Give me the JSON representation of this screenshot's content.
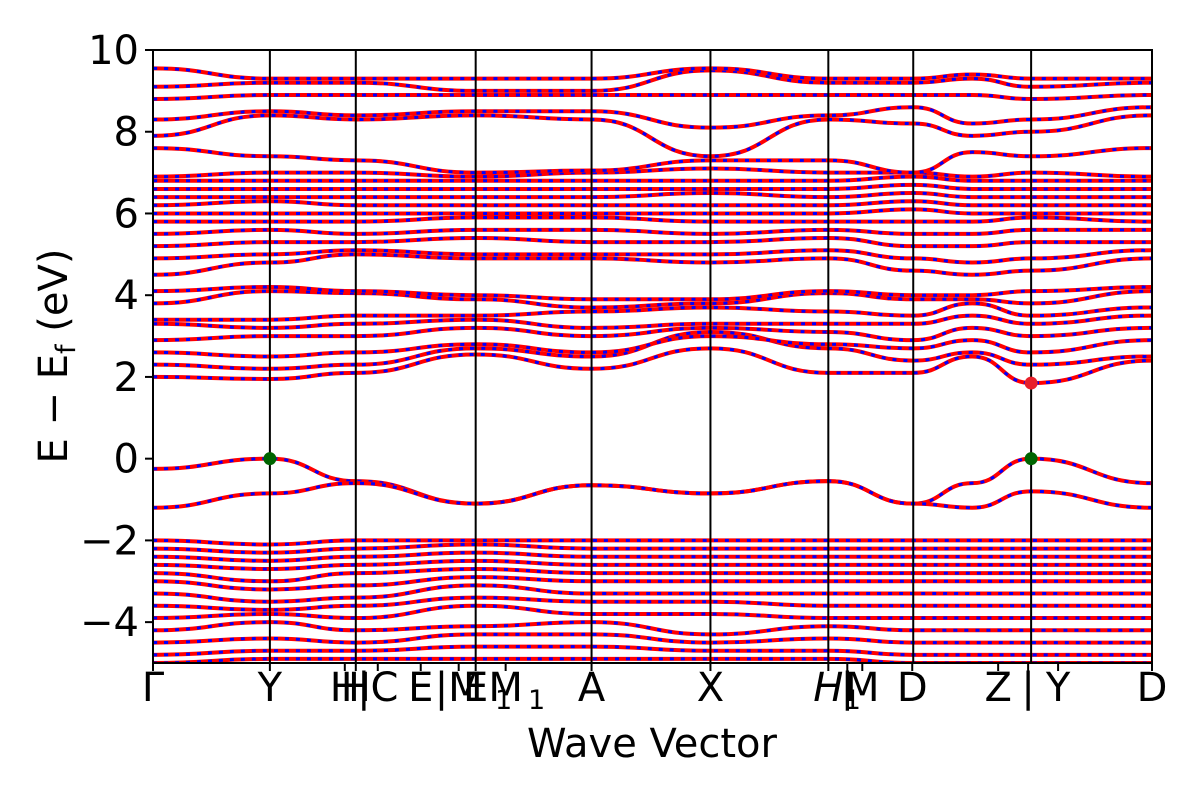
{
  "chart_data": {
    "type": "line",
    "title": "",
    "xlabel": "Wave Vector",
    "ylabel_main": "E − E",
    "ylabel_sub": "f",
    "ylabel_unit": " (eV)",
    "ylim": [
      -5,
      10
    ],
    "yticks": [
      -4,
      -2,
      0,
      2,
      4,
      6,
      8,
      10
    ],
    "ytick_labels": [
      "−4",
      "−2",
      "0",
      "2",
      "4",
      "6",
      "8",
      "10"
    ],
    "xlim": [
      0,
      1
    ],
    "kpoints": [
      {
        "x": 0.0,
        "label": "Γ"
      },
      {
        "x": 0.117,
        "label": "Y"
      },
      {
        "x": 0.192,
        "label": "H"
      },
      {
        "x": 0.203,
        "label": "H"
      },
      {
        "x": 0.225,
        "label": "|C"
      },
      {
        "x": 0.268,
        "label": "E"
      },
      {
        "x": 0.306,
        "label": "|M"
      },
      {
        "x": 0.323,
        "label": "E"
      },
      {
        "x": 0.353,
        "label": "M"
      },
      {
        "x": 0.323,
        "label": "1",
        "subscript": true,
        "dx": 0.028
      },
      {
        "x": 0.353,
        "label": "1",
        "subscript": true,
        "dx": 0.031
      },
      {
        "x": 0.439,
        "label": "A"
      },
      {
        "x": 0.558,
        "label": "X"
      },
      {
        "x": 0.676,
        "label": "H",
        "italic": true
      },
      {
        "x": 0.676,
        "label": "1",
        "subscript": true,
        "dx": 0.024
      },
      {
        "x": 0.695,
        "label": "|"
      },
      {
        "x": 0.71,
        "label": "M"
      },
      {
        "x": 0.76,
        "label": "D"
      },
      {
        "x": 0.846,
        "label": "Z"
      },
      {
        "x": 0.876,
        "label": "|"
      },
      {
        "x": 0.906,
        "label": "Y"
      },
      {
        "x": 1.0,
        "label": "D"
      }
    ],
    "vlines": [
      0.117,
      0.203,
      0.323,
      0.439,
      0.558,
      0.676,
      0.761,
      0.879
    ],
    "colors": {
      "band_red": "#ff0000",
      "band_blue": "#0000ff",
      "vbm_marker": "#006400",
      "cbm_marker": "#e8202a"
    },
    "markers": [
      {
        "x": 0.117,
        "y": 0.0,
        "color": "vbm"
      },
      {
        "x": 0.879,
        "y": 0.0,
        "color": "vbm"
      },
      {
        "x": 0.879,
        "y": 1.85,
        "color": "cbm"
      }
    ],
    "bands": [
      {
        "name": "",
        "y": [
          -0.25,
          0.0,
          -0.55,
          -1.1,
          -0.65,
          -0.85,
          -0.55,
          -1.1,
          -0.6,
          0.0,
          -0.6
        ]
      },
      {
        "name": "",
        "y": [
          -1.2,
          -0.85,
          -0.6,
          -1.1,
          -0.65,
          -0.85,
          -0.55,
          -1.1,
          -1.2,
          -0.8,
          -1.2
        ]
      },
      {
        "name": "",
        "y": [
          2.0,
          1.95,
          2.1,
          2.55,
          2.2,
          2.7,
          2.1,
          2.1,
          2.5,
          1.85,
          2.4
        ]
      },
      {
        "name": "",
        "y": [
          2.3,
          2.2,
          2.3,
          2.7,
          2.5,
          3.1,
          2.7,
          2.4,
          2.6,
          2.3,
          2.5
        ]
      },
      {
        "name": "",
        "y": [
          2.6,
          2.5,
          2.6,
          2.8,
          2.6,
          3.0,
          2.8,
          2.7,
          2.9,
          2.6,
          2.9
        ]
      },
      {
        "name": "",
        "y": [
          2.9,
          3.0,
          3.0,
          3.2,
          3.0,
          3.2,
          3.1,
          2.9,
          3.2,
          3.0,
          3.2
        ]
      },
      {
        "name": "",
        "y": [
          3.3,
          3.2,
          3.3,
          3.4,
          3.2,
          3.3,
          3.3,
          3.3,
          3.5,
          3.3,
          3.5
        ]
      },
      {
        "name": "",
        "y": [
          3.4,
          3.4,
          3.5,
          3.5,
          3.6,
          3.7,
          3.6,
          3.5,
          3.8,
          3.5,
          3.7
        ]
      },
      {
        "name": "",
        "y": [
          3.8,
          4.1,
          4.05,
          3.9,
          3.7,
          3.8,
          4.05,
          3.9,
          3.9,
          3.8,
          4.1
        ]
      },
      {
        "name": "",
        "y": [
          4.1,
          4.2,
          4.1,
          4.0,
          3.9,
          3.9,
          4.1,
          4.0,
          4.0,
          4.1,
          4.2
        ]
      },
      {
        "name": "",
        "y": [
          4.5,
          4.8,
          5.0,
          4.9,
          4.9,
          4.8,
          4.9,
          4.6,
          4.5,
          4.6,
          4.9
        ]
      },
      {
        "name": "",
        "y": [
          4.9,
          5.0,
          5.1,
          5.0,
          5.0,
          5.0,
          5.1,
          4.9,
          4.8,
          4.9,
          5.1
        ]
      },
      {
        "name": "",
        "y": [
          5.2,
          5.3,
          5.3,
          5.4,
          5.3,
          5.3,
          5.4,
          5.2,
          5.2,
          5.3,
          5.3
        ]
      },
      {
        "name": "",
        "y": [
          5.5,
          5.6,
          5.5,
          5.6,
          5.6,
          5.5,
          5.6,
          5.5,
          5.5,
          5.6,
          5.6
        ]
      },
      {
        "name": "",
        "y": [
          5.8,
          5.8,
          5.8,
          5.9,
          5.9,
          5.8,
          5.8,
          5.8,
          5.8,
          5.9,
          5.8
        ]
      },
      {
        "name": "",
        "y": [
          6.0,
          6.0,
          6.0,
          6.0,
          6.0,
          6.0,
          6.0,
          6.1,
          6.0,
          6.0,
          6.0
        ]
      },
      {
        "name": "",
        "y": [
          6.2,
          6.3,
          6.2,
          6.2,
          6.2,
          6.2,
          6.2,
          6.3,
          6.2,
          6.2,
          6.2
        ]
      },
      {
        "name": "",
        "y": [
          6.4,
          6.4,
          6.4,
          6.4,
          6.4,
          6.5,
          6.4,
          6.5,
          6.4,
          6.4,
          6.4
        ]
      },
      {
        "name": "",
        "y": [
          6.6,
          6.6,
          6.6,
          6.6,
          6.6,
          6.6,
          6.6,
          6.7,
          6.6,
          6.6,
          6.6
        ]
      },
      {
        "name": "",
        "y": [
          6.8,
          6.8,
          6.8,
          6.8,
          6.8,
          6.8,
          6.8,
          6.9,
          6.8,
          6.8,
          6.8
        ]
      },
      {
        "name": "",
        "y": [
          6.9,
          7.0,
          7.0,
          6.9,
          7.0,
          7.1,
          7.0,
          7.0,
          6.9,
          7.0,
          6.9
        ]
      },
      {
        "name": "",
        "y": [
          7.6,
          7.4,
          7.3,
          7.0,
          7.05,
          7.3,
          7.3,
          7.0,
          7.5,
          7.4,
          7.6
        ]
      },
      {
        "name": "",
        "y": [
          7.9,
          8.4,
          8.3,
          8.4,
          8.3,
          7.4,
          8.3,
          8.2,
          7.9,
          8.0,
          8.4
        ]
      },
      {
        "name": "",
        "y": [
          8.3,
          8.5,
          8.4,
          8.5,
          8.5,
          8.1,
          8.4,
          8.6,
          8.2,
          8.3,
          8.6
        ]
      },
      {
        "name": "",
        "y": [
          8.8,
          8.9,
          8.9,
          8.9,
          8.9,
          8.9,
          8.9,
          8.9,
          8.9,
          8.8,
          8.9
        ]
      },
      {
        "name": "",
        "y": [
          9.1,
          9.2,
          9.2,
          9.0,
          9.0,
          9.5,
          9.2,
          9.2,
          9.3,
          9.1,
          9.2
        ]
      },
      {
        "name": "",
        "y": [
          9.55,
          9.3,
          9.3,
          9.3,
          9.3,
          9.55,
          9.3,
          9.3,
          9.4,
          9.3,
          9.3
        ]
      },
      {
        "name": "",
        "y": [
          -2.0,
          -2.1,
          -2.0,
          -2.0,
          -2.0,
          -2.0,
          -2.0,
          -2.0,
          -2.0,
          -2.0,
          -2.0
        ]
      },
      {
        "name": "",
        "y": [
          -2.2,
          -2.3,
          -2.2,
          -2.1,
          -2.2,
          -2.2,
          -2.2,
          -2.2,
          -2.2,
          -2.2,
          -2.2
        ]
      },
      {
        "name": "",
        "y": [
          -2.4,
          -2.5,
          -2.4,
          -2.3,
          -2.4,
          -2.4,
          -2.4,
          -2.4,
          -2.4,
          -2.4,
          -2.4
        ]
      },
      {
        "name": "",
        "y": [
          -2.6,
          -2.7,
          -2.6,
          -2.5,
          -2.6,
          -2.6,
          -2.6,
          -2.6,
          -2.6,
          -2.6,
          -2.6
        ]
      },
      {
        "name": "",
        "y": [
          -2.8,
          -3.0,
          -2.8,
          -2.7,
          -2.8,
          -2.8,
          -2.8,
          -2.8,
          -2.8,
          -2.8,
          -2.8
        ]
      },
      {
        "name": "",
        "y": [
          -3.0,
          -3.2,
          -3.1,
          -2.9,
          -3.0,
          -3.0,
          -3.0,
          -3.0,
          -3.0,
          -3.0,
          -3.0
        ]
      },
      {
        "name": "",
        "y": [
          -3.3,
          -3.5,
          -3.4,
          -3.1,
          -3.3,
          -3.3,
          -3.3,
          -3.3,
          -3.3,
          -3.3,
          -3.3
        ]
      },
      {
        "name": "",
        "y": [
          -3.6,
          -3.7,
          -3.6,
          -3.4,
          -3.5,
          -3.5,
          -3.6,
          -3.6,
          -3.6,
          -3.6,
          -3.6
        ]
      },
      {
        "name": "",
        "y": [
          -3.9,
          -3.8,
          -3.9,
          -3.6,
          -3.8,
          -3.8,
          -3.9,
          -3.9,
          -3.9,
          -3.9,
          -3.9
        ]
      },
      {
        "name": "",
        "y": [
          -4.2,
          -4.0,
          -4.2,
          -4.1,
          -4.0,
          -4.3,
          -4.1,
          -4.2,
          -4.2,
          -4.2,
          -4.2
        ]
      },
      {
        "name": "",
        "y": [
          -4.5,
          -4.4,
          -4.5,
          -4.3,
          -4.3,
          -4.5,
          -4.4,
          -4.5,
          -4.5,
          -4.5,
          -4.5
        ]
      },
      {
        "name": "",
        "y": [
          -4.8,
          -4.7,
          -4.7,
          -4.6,
          -4.6,
          -4.7,
          -4.7,
          -4.8,
          -4.8,
          -4.8,
          -4.8
        ]
      },
      {
        "name": "",
        "y": [
          -5.0,
          -4.9,
          -4.9,
          -4.9,
          -4.9,
          -4.9,
          -4.9,
          -5.0,
          -5.0,
          -5.0,
          -5.0
        ]
      }
    ],
    "band_x": [
      0.0,
      0.117,
      0.203,
      0.323,
      0.439,
      0.558,
      0.676,
      0.761,
      0.82,
      0.879,
      1.0
    ]
  }
}
